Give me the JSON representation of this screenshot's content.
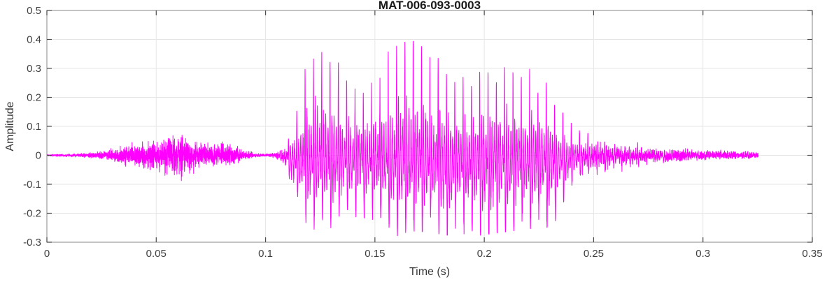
{
  "figure": {
    "background": "#FFFFFF"
  },
  "chart_data": {
    "type": "line",
    "subtype": "audio-waveform",
    "title": "MAT-006-093-0003",
    "xlabel": "Time (s)",
    "ylabel": "Amplitude",
    "xlim": [
      0,
      0.35
    ],
    "ylim": [
      -0.3,
      0.5
    ],
    "xticks": [
      0,
      0.05,
      0.1,
      0.15,
      0.2,
      0.25,
      0.3,
      0.35
    ],
    "yticks": [
      -0.3,
      -0.2,
      -0.1,
      0,
      0.1,
      0.2,
      0.3,
      0.4,
      0.5
    ],
    "grid": true,
    "legend": "none",
    "line_color": "#FF00FF",
    "grid_color": "#E6E6E6",
    "box_color": "#9B9B9B",
    "tick_mark_color": "#4D4D4D",
    "tick_label_color": "#404040",
    "title_color": "#1A1A1A",
    "signal": {
      "duration_s": 0.3253,
      "sample_rate_render": 20000,
      "pitch_hz": 263,
      "voiced_weight": [
        [
          0.0,
          0.0
        ],
        [
          0.102,
          0.0
        ],
        [
          0.108,
          0.55
        ],
        [
          0.113,
          1.0
        ],
        [
          0.238,
          1.0
        ],
        [
          0.25,
          0.62
        ],
        [
          0.265,
          0.48
        ],
        [
          0.285,
          0.3
        ],
        [
          0.3253,
          0.25
        ]
      ],
      "envelope": [
        [
          0.0,
          0.004,
          -0.004
        ],
        [
          0.01,
          0.006,
          -0.006
        ],
        [
          0.015,
          0.008,
          -0.008
        ],
        [
          0.02,
          0.012,
          -0.012
        ],
        [
          0.025,
          0.018,
          -0.018
        ],
        [
          0.03,
          0.03,
          -0.028
        ],
        [
          0.035,
          0.042,
          -0.045
        ],
        [
          0.04,
          0.052,
          -0.055
        ],
        [
          0.045,
          0.06,
          -0.062
        ],
        [
          0.05,
          0.07,
          -0.072
        ],
        [
          0.055,
          0.082,
          -0.088
        ],
        [
          0.058,
          0.088,
          -0.1
        ],
        [
          0.061,
          0.095,
          -0.112
        ],
        [
          0.064,
          0.08,
          -0.085
        ],
        [
          0.068,
          0.066,
          -0.07
        ],
        [
          0.072,
          0.06,
          -0.06
        ],
        [
          0.076,
          0.056,
          -0.054
        ],
        [
          0.08,
          0.056,
          -0.05
        ],
        [
          0.084,
          0.05,
          -0.044
        ],
        [
          0.088,
          0.034,
          -0.03
        ],
        [
          0.092,
          0.018,
          -0.016
        ],
        [
          0.096,
          0.009,
          -0.008
        ],
        [
          0.1,
          0.006,
          -0.006
        ],
        [
          0.104,
          0.012,
          -0.012
        ],
        [
          0.107,
          0.03,
          -0.042
        ],
        [
          0.11,
          0.065,
          -0.065
        ],
        [
          0.113,
          0.14,
          -0.15
        ],
        [
          0.116,
          0.22,
          -0.2
        ],
        [
          0.119,
          0.35,
          -0.24
        ],
        [
          0.122,
          0.4,
          -0.255
        ],
        [
          0.126,
          0.41,
          -0.262
        ],
        [
          0.13,
          0.395,
          -0.25
        ],
        [
          0.134,
          0.35,
          -0.24
        ],
        [
          0.138,
          0.325,
          -0.232
        ],
        [
          0.142,
          0.285,
          -0.23
        ],
        [
          0.146,
          0.3,
          -0.242
        ],
        [
          0.15,
          0.325,
          -0.258
        ],
        [
          0.154,
          0.362,
          -0.268
        ],
        [
          0.158,
          0.398,
          -0.285
        ],
        [
          0.162,
          0.418,
          -0.272
        ],
        [
          0.166,
          0.435,
          -0.262
        ],
        [
          0.17,
          0.405,
          -0.262
        ],
        [
          0.174,
          0.392,
          -0.266
        ],
        [
          0.178,
          0.345,
          -0.27
        ],
        [
          0.182,
          0.3,
          -0.274
        ],
        [
          0.186,
          0.296,
          -0.28
        ],
        [
          0.19,
          0.295,
          -0.284
        ],
        [
          0.194,
          0.282,
          -0.28
        ],
        [
          0.198,
          0.3,
          -0.276
        ],
        [
          0.202,
          0.286,
          -0.272
        ],
        [
          0.206,
          0.286,
          -0.268
        ],
        [
          0.21,
          0.312,
          -0.264
        ],
        [
          0.214,
          0.3,
          -0.26
        ],
        [
          0.218,
          0.292,
          -0.256
        ],
        [
          0.222,
          0.3,
          -0.252
        ],
        [
          0.226,
          0.276,
          -0.248
        ],
        [
          0.23,
          0.232,
          -0.25
        ],
        [
          0.234,
          0.166,
          -0.212
        ],
        [
          0.238,
          0.126,
          -0.122
        ],
        [
          0.242,
          0.116,
          -0.096
        ],
        [
          0.246,
          0.092,
          -0.09
        ],
        [
          0.25,
          0.086,
          -0.08
        ],
        [
          0.255,
          0.08,
          -0.072
        ],
        [
          0.26,
          0.072,
          -0.064
        ],
        [
          0.265,
          0.064,
          -0.056
        ],
        [
          0.27,
          0.052,
          -0.046
        ],
        [
          0.275,
          0.046,
          -0.04
        ],
        [
          0.28,
          0.042,
          -0.036
        ],
        [
          0.285,
          0.038,
          -0.032
        ],
        [
          0.29,
          0.036,
          -0.03
        ],
        [
          0.295,
          0.033,
          -0.028
        ],
        [
          0.3,
          0.031,
          -0.026
        ],
        [
          0.305,
          0.029,
          -0.024
        ],
        [
          0.31,
          0.027,
          -0.022
        ],
        [
          0.315,
          0.025,
          -0.021
        ],
        [
          0.32,
          0.022,
          -0.018
        ],
        [
          0.3253,
          0.016,
          -0.013
        ]
      ]
    }
  }
}
